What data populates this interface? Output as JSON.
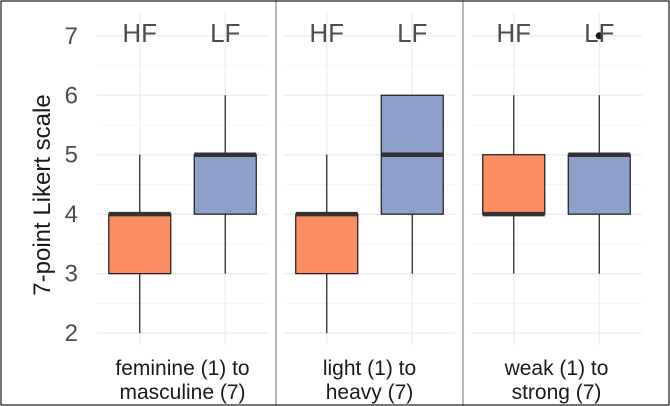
{
  "chart_data": {
    "type": "boxplot",
    "ylabel": "7-point Likert scale",
    "ylim": [
      1.8,
      7.4
    ],
    "yticks": [
      2,
      3,
      4,
      5,
      6,
      7
    ],
    "groups": [
      "HF",
      "LF"
    ],
    "colors": {
      "HF": "#fc8d62",
      "LF": "#8da0cb"
    },
    "grid": true,
    "panels": [
      {
        "label_line1": "feminine (1) to",
        "label_line2": "masculine (7)",
        "boxes": [
          {
            "group": "HF",
            "min": 2,
            "q1": 3,
            "median": 4,
            "q3": 4,
            "max": 5,
            "outliers": []
          },
          {
            "group": "LF",
            "min": 3,
            "q1": 4,
            "median": 5,
            "q3": 5,
            "max": 6,
            "outliers": []
          }
        ]
      },
      {
        "label_line1": "light (1) to",
        "label_line2": "heavy (7)",
        "boxes": [
          {
            "group": "HF",
            "min": 2,
            "q1": 3,
            "median": 4,
            "q3": 4,
            "max": 5,
            "outliers": []
          },
          {
            "group": "LF",
            "min": 3,
            "q1": 4,
            "median": 5,
            "q3": 6,
            "max": 6,
            "outliers": []
          }
        ]
      },
      {
        "label_line1": "weak (1) to",
        "label_line2": "strong (7)",
        "boxes": [
          {
            "group": "HF",
            "min": 3,
            "q1": 4,
            "median": 4,
            "q3": 5,
            "max": 6,
            "outliers": []
          },
          {
            "group": "LF",
            "min": 3,
            "q1": 4,
            "median": 5,
            "q3": 5,
            "max": 6,
            "outliers": [
              7
            ]
          }
        ]
      }
    ]
  }
}
